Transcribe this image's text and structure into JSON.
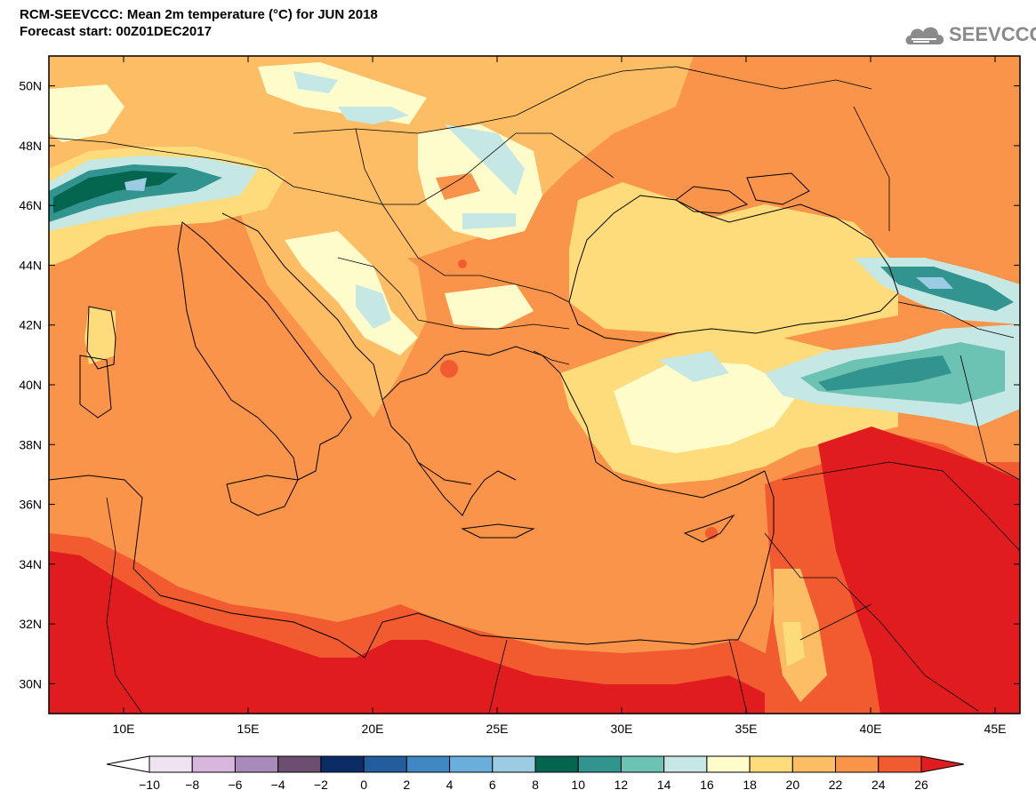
{
  "header": {
    "title_line1": "RCM-SEEVCCC: Mean 2m temperature (°C) for JUN 2018",
    "title_line2": "Forecast start: 00Z01DEC2017"
  },
  "logo": {
    "text": "SEEVCCC",
    "icon": "cloud-icon"
  },
  "map": {
    "lat_labels": [
      "50N",
      "48N",
      "46N",
      "44N",
      "42N",
      "40N",
      "38N",
      "36N",
      "34N",
      "32N",
      "30N"
    ],
    "lon_labels": [
      "10E",
      "15E",
      "20E",
      "25E",
      "30E",
      "35E",
      "40E",
      "45E"
    ],
    "lon_range": [
      7,
      46
    ],
    "lat_range": [
      29,
      51
    ]
  },
  "colorbar": {
    "labels": [
      "-10",
      "-8",
      "-6",
      "-4",
      "-2",
      "0",
      "2",
      "4",
      "6",
      "8",
      "10",
      "12",
      "14",
      "16",
      "18",
      "20",
      "22",
      "24",
      "26"
    ],
    "colors": [
      "#ffffff",
      "#efe3f2",
      "#d8b7df",
      "#a98bbb",
      "#6c4f70",
      "#0c2c66",
      "#245d9e",
      "#3f88c3",
      "#6aaedb",
      "#9ccbe4",
      "#05664f",
      "#32948e",
      "#6cc3b3",
      "#c6e8e5",
      "#fffccc",
      "#fedc7c",
      "#fcbd65",
      "#f9944a",
      "#f25a2f",
      "#e11c1e"
    ]
  }
}
